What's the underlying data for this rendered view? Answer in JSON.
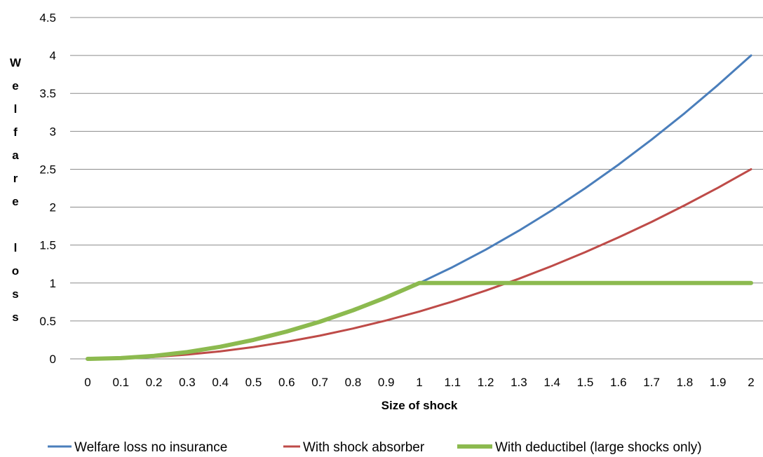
{
  "chart_data": {
    "type": "line",
    "xlabel": "Size of shock",
    "ylabel": "Welfare loss",
    "ylabel_rows": [
      "W",
      "e",
      "l",
      "f",
      "a",
      "r",
      "e",
      "",
      "l",
      "o",
      "s",
      "s"
    ],
    "x": [
      0,
      0.1,
      0.2,
      0.3,
      0.4,
      0.5,
      0.6,
      0.7,
      0.8,
      0.9,
      1,
      1.1,
      1.2,
      1.3,
      1.4,
      1.5,
      1.6,
      1.7,
      1.8,
      1.9,
      2
    ],
    "x_tick_labels": [
      "0",
      "0.1",
      "0.2",
      "0.3",
      "0.4",
      "0.5",
      "0.6",
      "0.7",
      "0.8",
      "0.9",
      "1",
      "1.1",
      "1.2",
      "1.3",
      "1.4",
      "1.5",
      "1.6",
      "1.7",
      "1.8",
      "1.9",
      "2"
    ],
    "ylim": [
      0,
      4.5
    ],
    "y_ticks": [
      0,
      0.5,
      1,
      1.5,
      2,
      2.5,
      3,
      3.5,
      4,
      4.5
    ],
    "y_tick_labels": [
      "0",
      "0.5",
      "1",
      "1.5",
      "2",
      "2.5",
      "3",
      "3.5",
      "4",
      "4.5"
    ],
    "grid": "horizontal",
    "legend_position": "bottom",
    "series": [
      {
        "name": "Welfare loss no insurance",
        "color": "#4a7ebb",
        "values": [
          0,
          0.01,
          0.04,
          0.09,
          0.16,
          0.25,
          0.36,
          0.49,
          0.64,
          0.81,
          1,
          1.21,
          1.44,
          1.69,
          1.96,
          2.25,
          2.56,
          2.89,
          3.24,
          3.61,
          4
        ]
      },
      {
        "name": "With shock absorber",
        "color": "#be4b48",
        "values": [
          0,
          0.006,
          0.025,
          0.056,
          0.1,
          0.156,
          0.225,
          0.306,
          0.4,
          0.506,
          0.625,
          0.756,
          0.9,
          1.056,
          1.225,
          1.406,
          1.6,
          1.806,
          2.025,
          2.256,
          2.5
        ]
      },
      {
        "name": "With deductibel (large shocks only)",
        "color": "#8cba4f",
        "values": [
          0,
          0.01,
          0.04,
          0.09,
          0.16,
          0.25,
          0.36,
          0.49,
          0.64,
          0.81,
          1,
          1,
          1,
          1,
          1,
          1,
          1,
          1,
          1,
          1,
          1
        ]
      }
    ]
  }
}
